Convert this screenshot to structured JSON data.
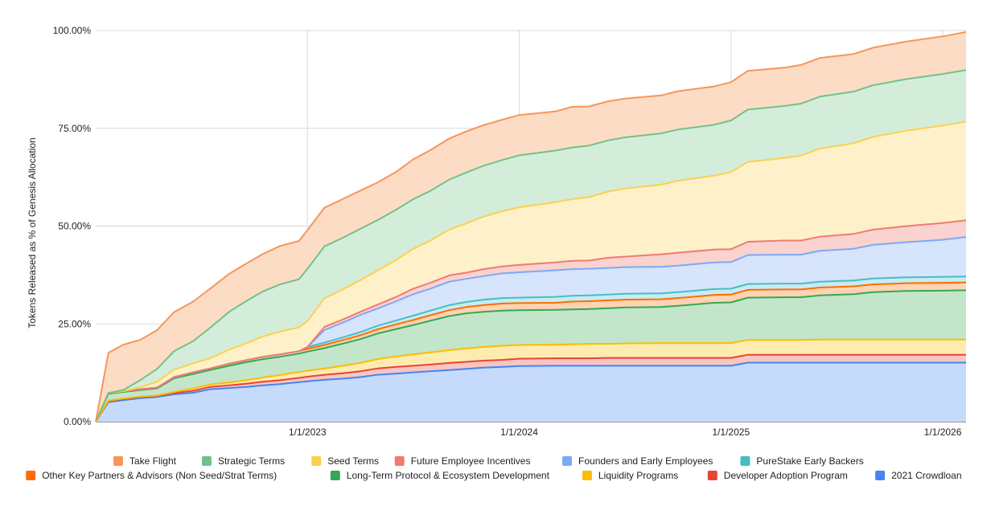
{
  "chart_data": {
    "type": "area",
    "stacked": true,
    "title": "",
    "xlabel": "",
    "ylabel": "Tokens Released as % of Genesis Allocation",
    "ylim": [
      0,
      100
    ],
    "yticks": [
      0,
      25,
      50,
      75,
      100
    ],
    "ytick_labels": [
      "0.00%",
      "25.00%",
      "50.00%",
      "75.00%",
      "100.00%"
    ],
    "xlim": [
      2022.0,
      2026.11
    ],
    "xticks": [
      2023,
      2024,
      2025,
      2026
    ],
    "xtick_labels": [
      "1/1/2023",
      "1/1/2024",
      "1/1/2025",
      "1/1/2026"
    ],
    "x": [
      2022.0,
      2022.06,
      2022.13,
      2022.21,
      2022.29,
      2022.37,
      2022.46,
      2022.54,
      2022.63,
      2022.71,
      2022.79,
      2022.87,
      2022.96,
      2023.0,
      2023.08,
      2023.17,
      2023.25,
      2023.33,
      2023.42,
      2023.5,
      2023.58,
      2023.67,
      2023.75,
      2023.83,
      2023.92,
      2024.0,
      2024.17,
      2024.25,
      2024.33,
      2024.42,
      2024.5,
      2024.67,
      2024.75,
      2024.92,
      2025.0,
      2025.08,
      2025.25,
      2025.33,
      2025.42,
      2025.58,
      2025.67,
      2025.83,
      2026.0,
      2026.11
    ],
    "series": [
      {
        "name": "2021 Crowdloan",
        "color": "#4285F4",
        "fill": "#C6DAFC",
        "values": [
          0,
          5.0,
          5.5,
          6.0,
          6.3,
          7.0,
          7.4,
          8.3,
          8.6,
          8.9,
          9.3,
          9.6,
          10.1,
          10.3,
          10.7,
          11.0,
          11.4,
          12.0,
          12.3,
          12.6,
          12.9,
          13.2,
          13.5,
          13.8,
          14.0,
          14.2,
          14.3,
          14.3,
          14.3,
          14.3,
          14.3,
          14.3,
          14.3,
          14.3,
          14.3,
          15.1,
          15.1,
          15.1,
          15.1,
          15.1,
          15.1,
          15.1,
          15.1,
          15.1
        ]
      },
      {
        "name": "Developer Adoption Program",
        "color": "#EA4335",
        "fill": "#F8C6C2",
        "values": [
          0,
          0.3,
          0.3,
          0.3,
          0.3,
          0.3,
          0.5,
          0.6,
          0.7,
          0.8,
          0.9,
          1.0,
          1.1,
          1.2,
          1.3,
          1.4,
          1.5,
          1.6,
          1.7,
          1.7,
          1.7,
          1.8,
          1.8,
          1.8,
          1.8,
          1.9,
          1.9,
          1.9,
          1.9,
          2.0,
          2.0,
          2.0,
          2.0,
          2.0,
          2.0,
          2.0,
          2.0,
          2.0,
          2.0,
          2.0,
          2.0,
          2.0,
          2.0,
          2.0
        ]
      },
      {
        "name": "Liquidity Programs",
        "color": "#FBBC04",
        "fill": "#FEEBB0",
        "values": [
          0,
          0.1,
          0.1,
          0.1,
          0.1,
          0.3,
          0.6,
          0.6,
          0.7,
          0.9,
          1.1,
          1.3,
          1.5,
          1.5,
          1.6,
          1.9,
          2.1,
          2.4,
          2.7,
          2.9,
          3.1,
          3.3,
          3.4,
          3.5,
          3.6,
          3.5,
          3.5,
          3.6,
          3.7,
          3.6,
          3.7,
          3.8,
          3.8,
          3.8,
          3.8,
          3.8,
          3.8,
          3.8,
          3.9,
          3.9,
          3.9,
          3.9,
          3.9,
          3.9
        ]
      },
      {
        "name": "Long-Term Protocol & Ecosystem Development",
        "color": "#34A853",
        "fill": "#C3E6CB",
        "values": [
          0,
          1.7,
          1.7,
          1.7,
          1.8,
          3.5,
          3.7,
          3.7,
          4.3,
          4.6,
          4.7,
          4.7,
          4.7,
          4.9,
          5.2,
          5.7,
          6.1,
          6.5,
          7.0,
          7.5,
          8.1,
          8.7,
          9.0,
          9.0,
          9.0,
          8.9,
          8.9,
          8.9,
          8.9,
          9.1,
          9.2,
          9.2,
          9.5,
          10.3,
          10.4,
          10.8,
          10.9,
          10.9,
          11.3,
          11.6,
          12.1,
          12.4,
          12.5,
          12.6
        ]
      },
      {
        "name": "Other Key Partners & Advisors (Non Seed/Strat Terms)",
        "color": "#FF6D01",
        "fill": "#FFD3B3",
        "values": [
          0,
          0.2,
          0.2,
          0.2,
          0.2,
          0.3,
          0.4,
          0.4,
          0.5,
          0.5,
          0.6,
          0.6,
          0.6,
          0.7,
          0.8,
          0.9,
          1.0,
          1.1,
          1.2,
          1.3,
          1.4,
          1.5,
          1.6,
          1.7,
          1.8,
          1.8,
          1.8,
          2.0,
          2.0,
          2.0,
          2.0,
          2.0,
          2.0,
          2.0,
          2.0,
          2.0,
          2.0,
          2.0,
          2.0,
          2.0,
          2.0,
          2.0,
          2.0,
          2.0
        ]
      },
      {
        "name": "PureStake Early Backers",
        "color": "#46BDC6",
        "fill": "#C8ECEF",
        "values": [
          0,
          0,
          0,
          0,
          0,
          0,
          0,
          0,
          0,
          0,
          0,
          0,
          0,
          0.5,
          0.6,
          0.7,
          0.8,
          0.9,
          1.0,
          1.1,
          1.2,
          1.3,
          1.3,
          1.4,
          1.4,
          1.4,
          1.5,
          1.5,
          1.5,
          1.5,
          1.5,
          1.5,
          1.5,
          1.5,
          1.5,
          1.5,
          1.5,
          1.5,
          1.5,
          1.5,
          1.5,
          1.5,
          1.5,
          1.5
        ]
      },
      {
        "name": "Founders and Early Employees",
        "color": "#7BAAF7",
        "fill": "#D6E4FC",
        "values": [
          0,
          0,
          0,
          0,
          0,
          0,
          0,
          0,
          0,
          0,
          0,
          0,
          0,
          0,
          3.2,
          3.8,
          4.4,
          4.4,
          4.9,
          5.5,
          5.6,
          6.0,
          5.9,
          6.0,
          6.3,
          6.5,
          6.8,
          6.8,
          6.8,
          6.8,
          6.8,
          6.8,
          6.8,
          6.8,
          6.8,
          7.4,
          7.4,
          7.4,
          7.9,
          8.1,
          8.6,
          9.0,
          9.5,
          10.1
        ]
      },
      {
        "name": "Future Employee Incentives",
        "color": "#F07B72",
        "fill": "#FAD2CF",
        "values": [
          0,
          0,
          0,
          0,
          0,
          0,
          0,
          0,
          0,
          0,
          0,
          0,
          0,
          0,
          0.8,
          0.8,
          0.8,
          1.0,
          1.1,
          1.4,
          1.5,
          1.6,
          1.6,
          1.8,
          1.8,
          1.9,
          2.0,
          2.1,
          2.1,
          2.6,
          2.7,
          3.2,
          3.3,
          3.3,
          3.3,
          3.4,
          3.6,
          3.6,
          3.6,
          3.8,
          3.9,
          4.1,
          4.3,
          4.3
        ]
      },
      {
        "name": "Seed Terms",
        "color": "#FCD04F",
        "fill": "#FEF1CA",
        "values": [
          0,
          0,
          0,
          0.5,
          1.5,
          1.9,
          2.3,
          2.6,
          3.6,
          4.3,
          5.2,
          5.8,
          6.1,
          6.6,
          7.3,
          7.7,
          8.1,
          8.7,
          9.5,
          10.2,
          10.8,
          11.7,
          12.6,
          13.4,
          14.1,
          14.7,
          15.4,
          15.8,
          16.2,
          16.9,
          17.4,
          17.8,
          18.4,
          18.9,
          19.7,
          20.4,
          21.1,
          21.7,
          22.5,
          23.2,
          23.7,
          24.4,
          24.9,
          25.2
        ]
      },
      {
        "name": "Strategic Terms",
        "color": "#71C287",
        "fill": "#D4EDDA",
        "values": [
          0,
          0,
          0.3,
          1.8,
          3.3,
          4.7,
          5.7,
          7.8,
          9.7,
          10.8,
          11.5,
          12.1,
          12.3,
          13.4,
          13.3,
          13.2,
          13.1,
          12.9,
          12.8,
          12.7,
          12.7,
          12.8,
          13.0,
          13.0,
          13.1,
          13.3,
          13.2,
          13.2,
          13.2,
          13.1,
          13.1,
          13.1,
          13.1,
          13.0,
          13.2,
          13.4,
          13.3,
          13.3,
          13.3,
          13.2,
          13.2,
          13.2,
          13.2,
          13.2
        ]
      },
      {
        "name": "Take Flight",
        "color": "#F6965A",
        "fill": "#FCDCC5",
        "values": [
          0,
          10.3,
          11.6,
          10.3,
          9.9,
          10.0,
          10.1,
          10.0,
          9.7,
          9.6,
          9.6,
          9.8,
          9.8,
          9.9,
          9.9,
          9.9,
          9.8,
          9.6,
          9.7,
          10.2,
          10.4,
          10.5,
          10.5,
          10.4,
          10.3,
          10.3,
          10.0,
          10.4,
          10.0,
          10.0,
          9.9,
          9.7,
          9.8,
          9.8,
          9.8,
          9.9,
          9.8,
          9.9,
          9.9,
          9.6,
          9.6,
          9.6,
          9.6,
          9.7
        ]
      }
    ],
    "legend": {
      "position": "bottom",
      "row1": [
        "Take Flight",
        "Strategic Terms",
        "Seed Terms",
        "Future Employee Incentives",
        "Founders and Early Employees",
        "PureStake Early Backers"
      ],
      "row2": [
        "Other Key Partners & Advisors (Non Seed/Strat Terms)",
        "Long-Term Protocol & Ecosystem Development",
        "Liquidity Programs",
        "Developer Adoption Program",
        "2021 Crowdloan"
      ]
    },
    "grid": true
  }
}
